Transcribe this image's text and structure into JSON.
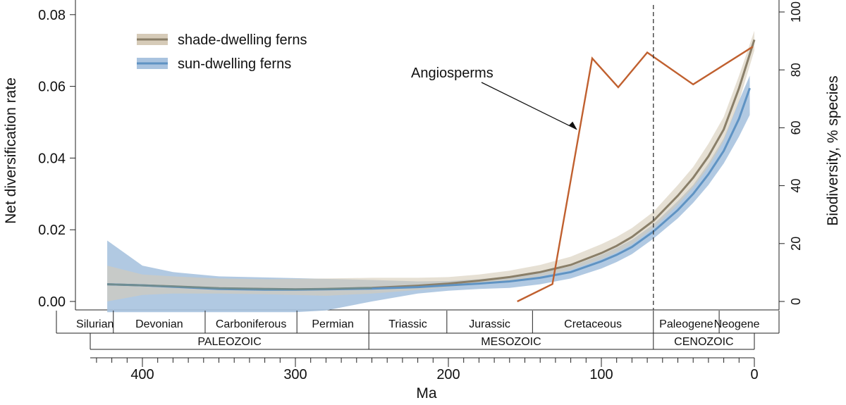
{
  "chart_data": {
    "type": "line",
    "xlabel": "Ma",
    "ylabel": "Net diversification rate",
    "y2label": "Biodiversity, % species",
    "xlim": [
      435,
      0
    ],
    "ylim": [
      -0.003,
      0.083
    ],
    "y2lim": [
      -3.2,
      100
    ],
    "x_ticks": [
      400,
      300,
      200,
      100,
      0
    ],
    "y_ticks": [
      "0.00",
      "0.02",
      "0.04",
      "0.06",
      "0.08"
    ],
    "y2_ticks": [
      "0",
      "20",
      "40",
      "60",
      "80",
      "100"
    ],
    "vline_x": 66,
    "legend_position": "top-left",
    "colors": {
      "shade_band": "#d6cbb8",
      "shade_line": "#8a7f69",
      "sun_band": "#a9c3df",
      "sun_line": "#5f93c3",
      "angiosperms": "#c0602f",
      "overlap_line": "#6f8c8f"
    },
    "series": [
      {
        "name": "shade-dwelling ferns",
        "x": [
          423,
          400,
          380,
          350,
          320,
          300,
          280,
          250,
          220,
          200,
          180,
          160,
          140,
          120,
          100,
          90,
          80,
          66,
          50,
          40,
          30,
          20,
          10,
          0
        ],
        "y": [
          0.0048,
          0.0045,
          0.0042,
          0.0037,
          0.0035,
          0.0034,
          0.0035,
          0.0038,
          0.0044,
          0.005,
          0.0058,
          0.0068,
          0.0082,
          0.0102,
          0.0135,
          0.0155,
          0.018,
          0.0225,
          0.0295,
          0.0345,
          0.0405,
          0.048,
          0.0595,
          0.073
        ],
        "lower": [
          0.0,
          0.0018,
          0.0022,
          0.0022,
          0.002,
          0.0018,
          0.0016,
          0.0022,
          0.0032,
          0.004,
          0.0048,
          0.0057,
          0.007,
          0.0088,
          0.0118,
          0.0137,
          0.016,
          0.0205,
          0.027,
          0.0318,
          0.0375,
          0.0448,
          0.0558,
          0.07
        ],
        "upper": [
          0.01,
          0.0075,
          0.007,
          0.0064,
          0.0062,
          0.0063,
          0.0064,
          0.0066,
          0.0066,
          0.0068,
          0.0075,
          0.0086,
          0.0102,
          0.0125,
          0.016,
          0.018,
          0.0205,
          0.025,
          0.0325,
          0.0375,
          0.044,
          0.0515,
          0.063,
          0.0755
        ]
      },
      {
        "name": "sun-dwelling ferns",
        "x": [
          423,
          400,
          380,
          350,
          320,
          300,
          280,
          250,
          220,
          200,
          180,
          160,
          140,
          120,
          100,
          90,
          80,
          66,
          50,
          40,
          30,
          20,
          10,
          3
        ],
        "y": [
          0.0048,
          0.0045,
          0.0041,
          0.0035,
          0.0033,
          0.0033,
          0.0034,
          0.0036,
          0.004,
          0.0045,
          0.005,
          0.0056,
          0.0066,
          0.0082,
          0.0112,
          0.013,
          0.0152,
          0.0195,
          0.0255,
          0.03,
          0.0355,
          0.042,
          0.051,
          0.0595
        ],
        "lower": [
          -0.003,
          -0.003,
          -0.003,
          -0.003,
          -0.003,
          -0.003,
          -0.0025,
          0.0,
          0.0022,
          0.003,
          0.0035,
          0.0038,
          0.0048,
          0.0064,
          0.0092,
          0.011,
          0.0132,
          0.0175,
          0.0232,
          0.0275,
          0.0325,
          0.0385,
          0.046,
          0.052
        ],
        "upper": [
          0.017,
          0.01,
          0.0082,
          0.007,
          0.0067,
          0.0065,
          0.0063,
          0.006,
          0.0056,
          0.0057,
          0.0062,
          0.007,
          0.008,
          0.0098,
          0.013,
          0.015,
          0.0172,
          0.0215,
          0.028,
          0.0325,
          0.0385,
          0.0455,
          0.056,
          0.063
        ]
      },
      {
        "name": "Angiosperms",
        "axis": "right",
        "x": [
          155,
          132,
          106,
          89,
          70,
          40,
          1
        ],
        "y": [
          0,
          6,
          84,
          74,
          86,
          75,
          88
        ]
      }
    ],
    "annotations": [
      {
        "text": "Angiosperms",
        "x": 200,
        "y": 0.063,
        "arrow_to_x": 116,
        "arrow_to_y": 0.048
      }
    ],
    "periods": [
      {
        "label": "Silurian",
        "start": 443,
        "end": 419
      },
      {
        "label": "Devonian",
        "start": 419,
        "end": 359
      },
      {
        "label": "Carboniferous",
        "start": 359,
        "end": 299
      },
      {
        "label": "Permian",
        "start": 299,
        "end": 252
      },
      {
        "label": "Triassic",
        "start": 252,
        "end": 201
      },
      {
        "label": "Jurassic",
        "start": 201,
        "end": 145
      },
      {
        "label": "Cretaceous",
        "start": 145,
        "end": 66
      },
      {
        "label": "Paleogene",
        "start": 66,
        "end": 23
      },
      {
        "label": "Neogene",
        "start": 23,
        "end": 0
      }
    ],
    "eras": [
      {
        "label": "PALEOZOIC",
        "start": 435,
        "end": 252
      },
      {
        "label": "MESOZOIC",
        "start": 252,
        "end": 66
      },
      {
        "label": "CENOZOIC",
        "start": 66,
        "end": 0
      }
    ]
  }
}
